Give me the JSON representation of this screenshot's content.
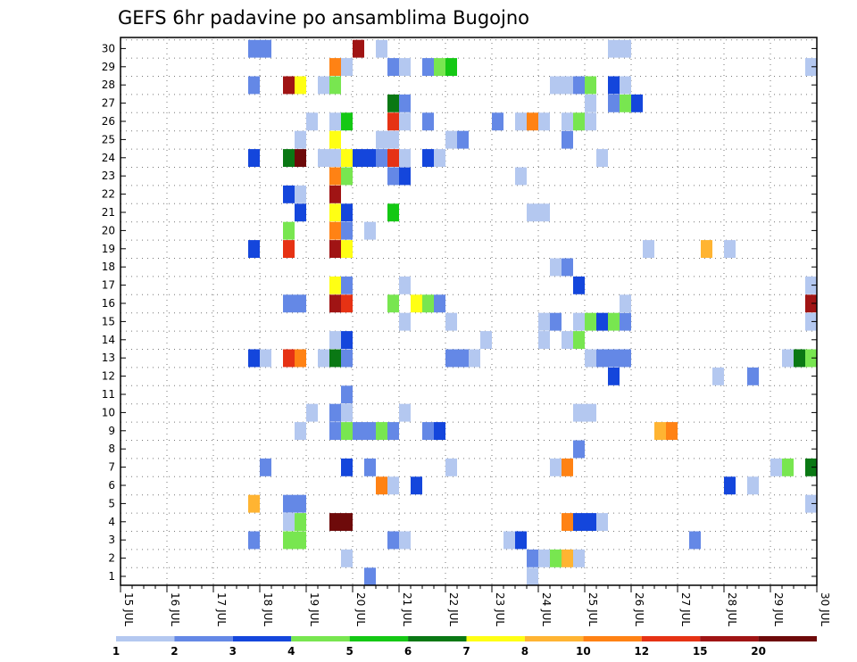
{
  "chart_data": {
    "type": "heatmap",
    "title": "GEFS 6hr padavine po ansamblima Bugojno",
    "xlabel": "",
    "ylabel": "",
    "x_tick_labels": [
      "15 JUL",
      "16 JUL",
      "17 JUL",
      "18 JUL",
      "19 JUL",
      "20 JUL",
      "21 JUL",
      "22 JUL",
      "23 JUL",
      "24 JUL",
      "25 JUL",
      "26 JUL",
      "27 JUL",
      "28 JUL",
      "29 JUL",
      "30 JUL"
    ],
    "y_tick_labels": [
      "1",
      "2",
      "3",
      "4",
      "5",
      "6",
      "7",
      "8",
      "9",
      "10",
      "11",
      "12",
      "13",
      "14",
      "15",
      "16",
      "17",
      "18",
      "19",
      "20",
      "21",
      "22",
      "23",
      "24",
      "25",
      "26",
      "27",
      "28",
      "29",
      "30"
    ],
    "x_range_days": [
      0,
      15
    ],
    "step_hours": 6,
    "grid": "dotted",
    "colorbar": {
      "labels": [
        "1",
        "2",
        "3",
        "4",
        "5",
        "6",
        "7",
        "8",
        "10",
        "12",
        "15",
        "20"
      ],
      "colors": [
        "#b4c8f0",
        "#6488e6",
        "#1446dc",
        "#78e650",
        "#14c814",
        "#0a7814",
        "#ffff14",
        "#ffb432",
        "#ff8214",
        "#e63214",
        "#a01414",
        "#6e0a0a"
      ]
    },
    "cells_note": "each cell = [member(1-30), step index (6h steps from 15 JUL 00z), color class index 0-11]",
    "cells": [
      [
        30,
        11,
        1
      ],
      [
        30,
        12,
        1
      ],
      [
        30,
        20,
        10
      ],
      [
        30,
        22,
        0
      ],
      [
        30,
        42,
        0
      ],
      [
        30,
        43,
        0
      ],
      [
        29,
        18,
        8
      ],
      [
        29,
        19,
        0
      ],
      [
        29,
        23,
        1
      ],
      [
        29,
        24,
        0
      ],
      [
        29,
        26,
        1
      ],
      [
        29,
        27,
        3
      ],
      [
        29,
        28,
        4
      ],
      [
        29,
        59,
        0
      ],
      [
        28,
        11,
        1
      ],
      [
        28,
        14,
        10
      ],
      [
        28,
        15,
        6
      ],
      [
        28,
        17,
        0
      ],
      [
        28,
        18,
        3
      ],
      [
        28,
        37,
        0
      ],
      [
        28,
        38,
        0
      ],
      [
        28,
        39,
        1
      ],
      [
        28,
        40,
        3
      ],
      [
        28,
        42,
        2
      ],
      [
        28,
        43,
        0
      ],
      [
        27,
        23,
        5
      ],
      [
        27,
        24,
        1
      ],
      [
        27,
        40,
        0
      ],
      [
        27,
        42,
        1
      ],
      [
        27,
        43,
        3
      ],
      [
        27,
        44,
        2
      ],
      [
        26,
        16,
        0
      ],
      [
        26,
        18,
        0
      ],
      [
        26,
        19,
        4
      ],
      [
        26,
        23,
        9
      ],
      [
        26,
        24,
        0
      ],
      [
        26,
        26,
        1
      ],
      [
        26,
        32,
        1
      ],
      [
        26,
        34,
        0
      ],
      [
        26,
        35,
        8
      ],
      [
        26,
        36,
        0
      ],
      [
        26,
        38,
        0
      ],
      [
        26,
        39,
        3
      ],
      [
        26,
        40,
        0
      ],
      [
        25,
        15,
        0
      ],
      [
        25,
        18,
        6
      ],
      [
        25,
        22,
        0
      ],
      [
        25,
        23,
        0
      ],
      [
        25,
        28,
        0
      ],
      [
        25,
        29,
        1
      ],
      [
        25,
        38,
        1
      ],
      [
        24,
        11,
        2
      ],
      [
        24,
        14,
        5
      ],
      [
        24,
        15,
        11
      ],
      [
        24,
        17,
        0
      ],
      [
        24,
        18,
        0
      ],
      [
        24,
        19,
        6
      ],
      [
        24,
        20,
        2
      ],
      [
        24,
        21,
        2
      ],
      [
        24,
        22,
        1
      ],
      [
        24,
        23,
        9
      ],
      [
        24,
        24,
        0
      ],
      [
        24,
        26,
        2
      ],
      [
        24,
        27,
        0
      ],
      [
        24,
        41,
        0
      ],
      [
        23,
        18,
        8
      ],
      [
        23,
        19,
        3
      ],
      [
        23,
        23,
        1
      ],
      [
        23,
        24,
        2
      ],
      [
        23,
        34,
        0
      ],
      [
        22,
        14,
        2
      ],
      [
        22,
        15,
        0
      ],
      [
        22,
        18,
        10
      ],
      [
        21,
        15,
        2
      ],
      [
        21,
        18,
        6
      ],
      [
        21,
        19,
        2
      ],
      [
        21,
        23,
        4
      ],
      [
        21,
        35,
        0
      ],
      [
        21,
        36,
        0
      ],
      [
        20,
        14,
        3
      ],
      [
        20,
        18,
        8
      ],
      [
        20,
        19,
        1
      ],
      [
        20,
        21,
        0
      ],
      [
        19,
        11,
        2
      ],
      [
        19,
        14,
        9
      ],
      [
        19,
        18,
        10
      ],
      [
        19,
        19,
        6
      ],
      [
        19,
        45,
        0
      ],
      [
        19,
        50,
        7
      ],
      [
        19,
        52,
        0
      ],
      [
        18,
        37,
        0
      ],
      [
        18,
        38,
        1
      ],
      [
        17,
        18,
        6
      ],
      [
        17,
        19,
        1
      ],
      [
        17,
        24,
        0
      ],
      [
        17,
        39,
        2
      ],
      [
        17,
        59,
        0
      ],
      [
        16,
        14,
        1
      ],
      [
        16,
        15,
        1
      ],
      [
        16,
        18,
        10
      ],
      [
        16,
        19,
        9
      ],
      [
        16,
        23,
        3
      ],
      [
        16,
        25,
        6
      ],
      [
        16,
        26,
        3
      ],
      [
        16,
        27,
        1
      ],
      [
        16,
        43,
        0
      ],
      [
        16,
        59,
        10
      ],
      [
        15,
        24,
        0
      ],
      [
        15,
        28,
        0
      ],
      [
        15,
        36,
        0
      ],
      [
        15,
        37,
        1
      ],
      [
        15,
        39,
        0
      ],
      [
        15,
        40,
        3
      ],
      [
        15,
        41,
        2
      ],
      [
        15,
        42,
        3
      ],
      [
        15,
        43,
        1
      ],
      [
        15,
        59,
        0
      ],
      [
        14,
        18,
        0
      ],
      [
        14,
        19,
        2
      ],
      [
        14,
        31,
        0
      ],
      [
        14,
        36,
        0
      ],
      [
        14,
        38,
        0
      ],
      [
        14,
        39,
        3
      ],
      [
        13,
        11,
        2
      ],
      [
        13,
        12,
        0
      ],
      [
        13,
        14,
        9
      ],
      [
        13,
        15,
        8
      ],
      [
        13,
        17,
        0
      ],
      [
        13,
        18,
        5
      ],
      [
        13,
        19,
        1
      ],
      [
        13,
        28,
        1
      ],
      [
        13,
        29,
        1
      ],
      [
        13,
        30,
        0
      ],
      [
        13,
        40,
        0
      ],
      [
        13,
        41,
        1
      ],
      [
        13,
        42,
        1
      ],
      [
        13,
        43,
        1
      ],
      [
        13,
        57,
        0
      ],
      [
        13,
        58,
        5
      ],
      [
        13,
        59,
        3
      ],
      [
        12,
        42,
        2
      ],
      [
        12,
        51,
        0
      ],
      [
        12,
        54,
        1
      ],
      [
        11,
        19,
        1
      ],
      [
        10,
        16,
        0
      ],
      [
        10,
        18,
        1
      ],
      [
        10,
        19,
        0
      ],
      [
        10,
        24,
        0
      ],
      [
        10,
        39,
        0
      ],
      [
        10,
        40,
        0
      ],
      [
        9,
        15,
        0
      ],
      [
        9,
        18,
        1
      ],
      [
        9,
        19,
        3
      ],
      [
        9,
        20,
        1
      ],
      [
        9,
        21,
        1
      ],
      [
        9,
        22,
        3
      ],
      [
        9,
        23,
        1
      ],
      [
        9,
        26,
        1
      ],
      [
        9,
        27,
        2
      ],
      [
        9,
        46,
        7
      ],
      [
        9,
        47,
        8
      ],
      [
        8,
        39,
        1
      ],
      [
        7,
        12,
        1
      ],
      [
        7,
        19,
        2
      ],
      [
        7,
        21,
        1
      ],
      [
        7,
        28,
        0
      ],
      [
        7,
        37,
        0
      ],
      [
        7,
        38,
        8
      ],
      [
        7,
        56,
        0
      ],
      [
        7,
        57,
        3
      ],
      [
        7,
        59,
        5
      ],
      [
        6,
        22,
        8
      ],
      [
        6,
        23,
        0
      ],
      [
        6,
        25,
        2
      ],
      [
        6,
        52,
        2
      ],
      [
        6,
        54,
        0
      ],
      [
        5,
        11,
        7
      ],
      [
        5,
        14,
        1
      ],
      [
        5,
        15,
        1
      ],
      [
        5,
        59,
        0
      ],
      [
        4,
        14,
        0
      ],
      [
        4,
        15,
        3
      ],
      [
        4,
        18,
        11
      ],
      [
        4,
        19,
        11
      ],
      [
        4,
        38,
        8
      ],
      [
        4,
        39,
        2
      ],
      [
        4,
        40,
        2
      ],
      [
        4,
        41,
        0
      ],
      [
        3,
        11,
        1
      ],
      [
        3,
        14,
        3
      ],
      [
        3,
        15,
        3
      ],
      [
        3,
        23,
        1
      ],
      [
        3,
        24,
        0
      ],
      [
        3,
        33,
        0
      ],
      [
        3,
        34,
        2
      ],
      [
        3,
        49,
        1
      ],
      [
        2,
        19,
        0
      ],
      [
        2,
        35,
        1
      ],
      [
        2,
        36,
        0
      ],
      [
        2,
        37,
        3
      ],
      [
        2,
        38,
        7
      ],
      [
        2,
        39,
        0
      ],
      [
        1,
        21,
        1
      ],
      [
        1,
        35,
        0
      ]
    ]
  }
}
